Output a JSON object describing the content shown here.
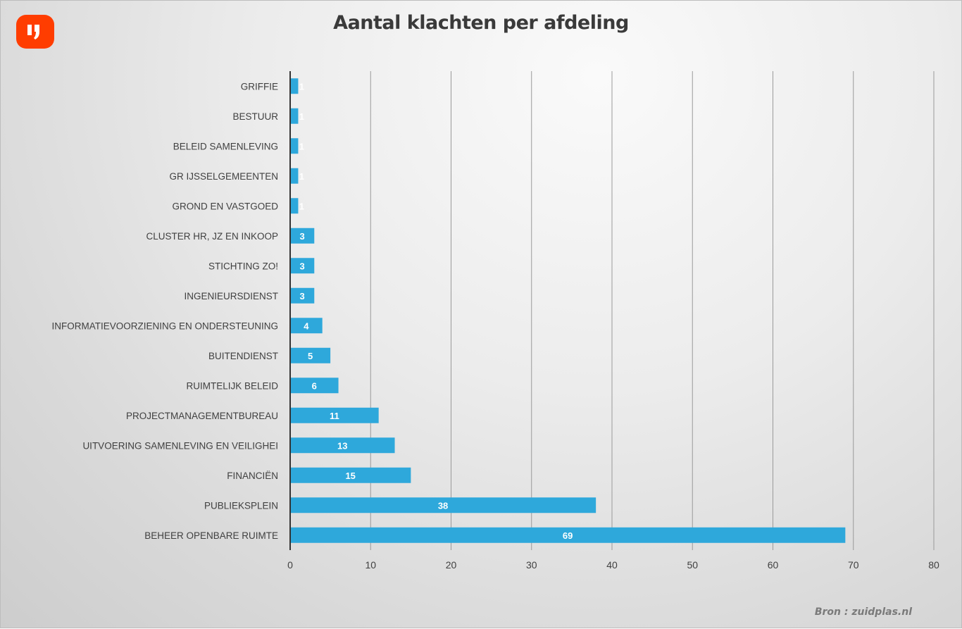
{
  "logo": {
    "text": "IJ",
    "color": "#ff3d00"
  },
  "source": "Bron : zuidplas.nl",
  "chart_data": {
    "type": "bar",
    "orientation": "horizontal",
    "title": "Aantal klachten per afdeling",
    "xlabel": "",
    "ylabel": "",
    "categories": [
      "GRIFFIE",
      "BESTUUR",
      "BELEID SAMENLEVING",
      "GR IJSSELGEMEENTEN",
      "GROND EN VASTGOED",
      "CLUSTER HR, JZ EN INKOOP",
      "STICHTING ZO!",
      "INGENIEURSDIENST",
      "INFORMATIEVOORZIENING EN ONDERSTEUNING",
      "BUITENDIENST",
      "RUIMTELIJK BELEID",
      "PROJECTMANAGEMENTBUREAU",
      "UITVOERING SAMENLEVING EN VEILIGHEI",
      "FINANCIËN",
      "PUBLIEKSPLEIN",
      "BEHEER OPENBARE RUIMTE"
    ],
    "values": [
      1,
      1,
      1,
      1,
      1,
      3,
      3,
      3,
      4,
      5,
      6,
      11,
      13,
      15,
      38,
      69
    ],
    "xlim": [
      0,
      80
    ],
    "xticks": [
      0,
      10,
      20,
      30,
      40,
      50,
      60,
      70,
      80
    ],
    "grid": true,
    "bar_color": "#2ea8db",
    "legend": "none"
  }
}
